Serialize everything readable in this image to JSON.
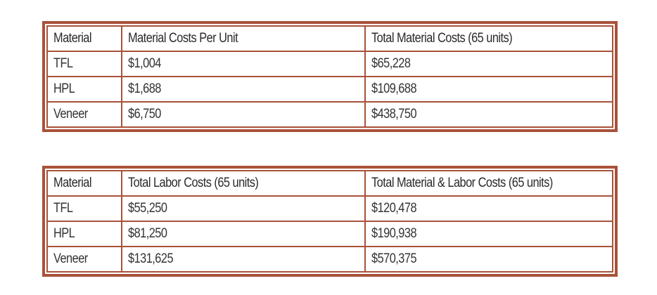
{
  "tables": [
    {
      "headers": [
        "Material",
        "Material Costs Per Unit",
        "Total Material Costs (65 units)"
      ],
      "rows": [
        [
          "TFL",
          "$1,004",
          "$65,228"
        ],
        [
          "HPL",
          "$1,688",
          "$109,688"
        ],
        [
          "Veneer",
          "$6,750",
          "$438,750"
        ]
      ]
    },
    {
      "headers": [
        "Material",
        "Total Labor Costs (65 units)",
        "Total Material & Labor Costs (65 units)"
      ],
      "rows": [
        [
          "TFL",
          "$55,250",
          "$120,478"
        ],
        [
          "HPL",
          "$81,250",
          "$190,938"
        ],
        [
          "Veneer",
          "$131,625",
          "$570,375"
        ]
      ]
    }
  ],
  "colors": {
    "border": "#a9523a",
    "text": "#333333",
    "background": "#ffffff"
  }
}
